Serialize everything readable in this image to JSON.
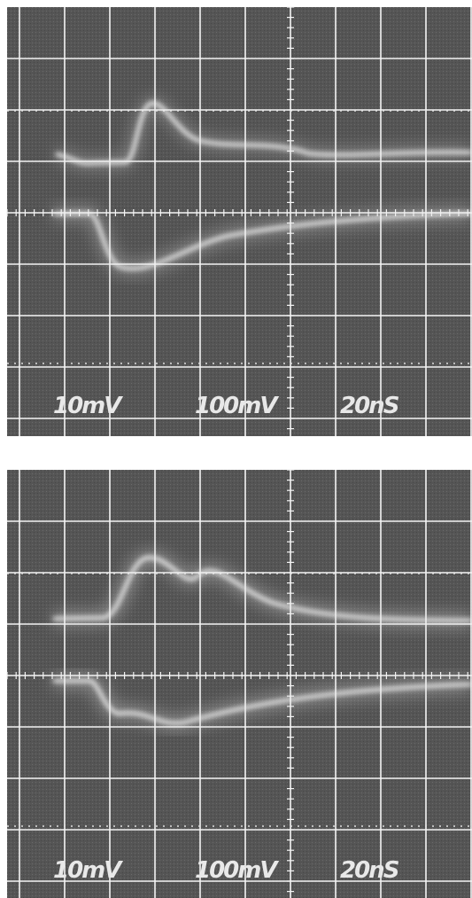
{
  "panels": [
    {
      "labels": [
        "10mV",
        "100mV",
        "20nS"
      ]
    },
    {
      "labels": [
        "10mV",
        "100mV",
        "20nS"
      ]
    }
  ]
}
